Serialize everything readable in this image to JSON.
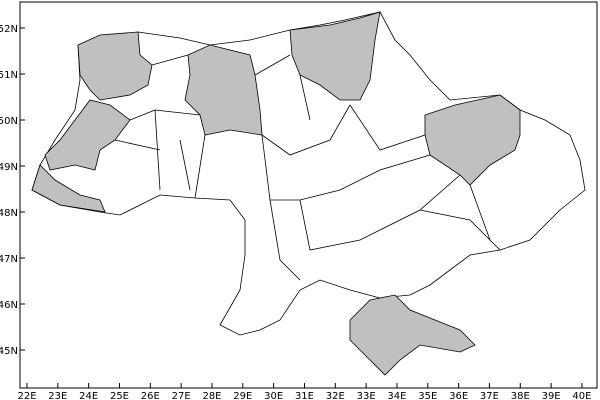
{
  "map": {
    "y_ticks": [
      "52N",
      "51N",
      "50N",
      "49N",
      "48N",
      "47N",
      "46N",
      "45N"
    ],
    "x_ticks": [
      "22E",
      "23E",
      "24E",
      "25E",
      "26E",
      "27E",
      "28E",
      "29E",
      "30E",
      "31E",
      "32E",
      "33E",
      "34E",
      "35E",
      "36E",
      "37E",
      "38E",
      "39E",
      "40E"
    ],
    "lon_range": [
      21.8,
      40.5
    ],
    "lat_range": [
      44.2,
      52.5
    ],
    "highlight_color": "#c0c0c0",
    "base_color": "#ffffff",
    "border_color": "#000000"
  }
}
